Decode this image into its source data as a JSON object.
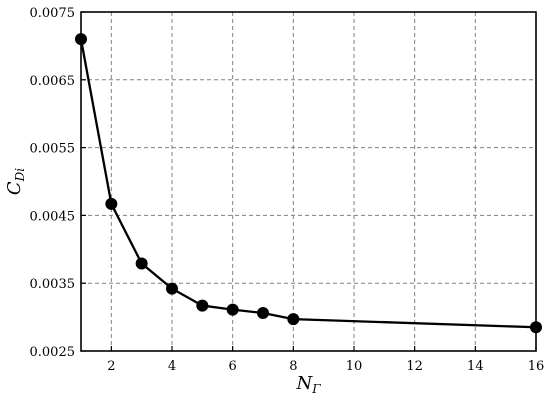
{
  "chart_data": {
    "type": "line",
    "title": "",
    "xlabel": {
      "main": "N",
      "sub": "Γ"
    },
    "ylabel": {
      "main": "C",
      "sub": "Di"
    },
    "xlim": [
      1,
      16
    ],
    "ylim": [
      0.0025,
      0.0075
    ],
    "grid": true,
    "x_ticks": [
      2,
      4,
      6,
      8,
      10,
      12,
      14,
      16
    ],
    "y_ticks": [
      0.0025,
      0.0035,
      0.0045,
      0.0055,
      0.0065,
      0.0075
    ],
    "y_tick_labels": [
      "0.0025",
      "0.0035",
      "0.0045",
      "0.0055",
      "0.0065",
      "0.0075"
    ],
    "series": [
      {
        "color": "#000000",
        "marker": "circle",
        "x": [
          1,
          2,
          3,
          4,
          5,
          6,
          7,
          8,
          16
        ],
        "y": [
          0.0071,
          0.00467,
          0.00379,
          0.00342,
          0.00317,
          0.00311,
          0.00306,
          0.00297,
          0.00285
        ]
      }
    ]
  }
}
